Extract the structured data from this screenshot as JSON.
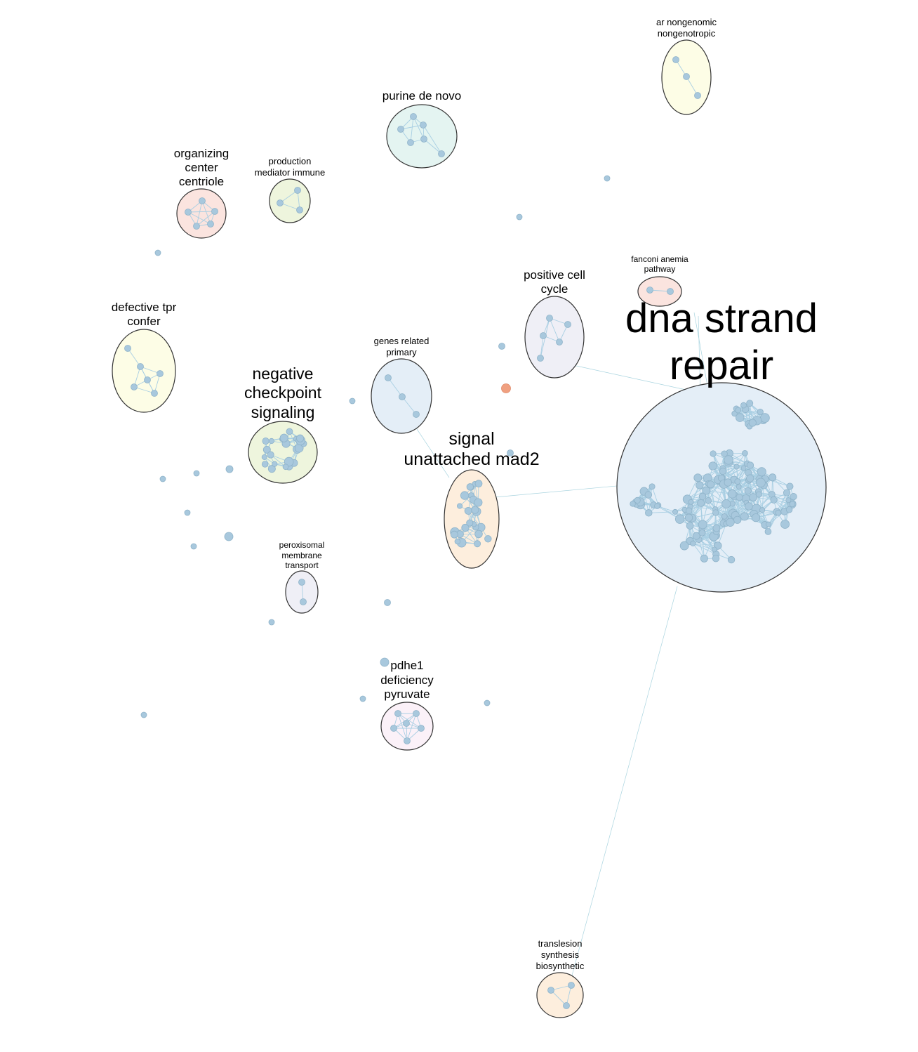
{
  "colors": {
    "node": "#a8c8dd",
    "node_highlight": "#f0a080",
    "edge": "#a9cfe3"
  },
  "clusters": [
    {
      "id": "dna",
      "label": [
        "dna strand",
        "repair"
      ],
      "fill": "#e4eef7"
    },
    {
      "id": "mad2",
      "label": [
        "signal",
        "unattached mad2"
      ],
      "fill": "#fdeedd"
    },
    {
      "id": "checkpoint",
      "label": [
        "negative",
        "checkpoint",
        "signaling"
      ],
      "fill": "#eef5dd"
    },
    {
      "id": "purine",
      "label": [
        "purine de novo"
      ],
      "fill": "#e4f4f1"
    },
    {
      "id": "ar",
      "label": [
        "ar nongenomic",
        "nongenotropic"
      ],
      "fill": "#fdfde6"
    },
    {
      "id": "centriole",
      "label": [
        "organizing",
        "center",
        "centriole"
      ],
      "fill": "#fbe4df"
    },
    {
      "id": "immune",
      "label": [
        "production",
        "mediator immune"
      ],
      "fill": "#eef5dd"
    },
    {
      "id": "tpr",
      "label": [
        "defective tpr",
        "confer"
      ],
      "fill": "#fdfde6"
    },
    {
      "id": "cellcycle",
      "label": [
        "positive cell",
        "cycle"
      ],
      "fill": "#efeff6"
    },
    {
      "id": "fanconi",
      "label": [
        "fanconi anemia",
        "pathway"
      ],
      "fill": "#fbe4df"
    },
    {
      "id": "primary",
      "label": [
        "genes related",
        "primary"
      ],
      "fill": "#e4eef7"
    },
    {
      "id": "peroxisomal",
      "label": [
        "peroxisomal",
        "membrane",
        "transport"
      ],
      "fill": "#efeff6"
    },
    {
      "id": "pdhe1",
      "label": [
        "pdhe1",
        "deficiency",
        "pyruvate"
      ],
      "fill": "#fbf1f8"
    },
    {
      "id": "translesion",
      "label": [
        "translesion",
        "synthesis",
        "biosynthetic"
      ],
      "fill": "#fdeedd"
    }
  ]
}
